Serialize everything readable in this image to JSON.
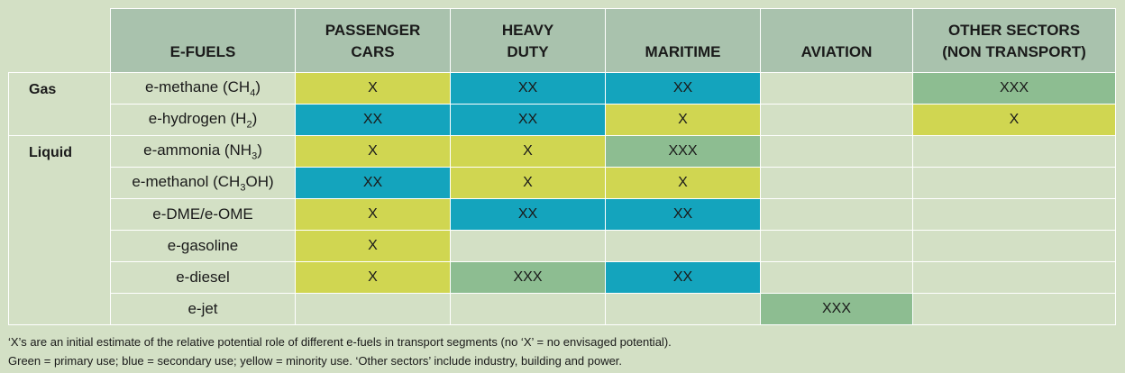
{
  "header": {
    "efuels": "E-FUELS",
    "col1_line1": "PASSENGER",
    "col1_line2": "CARS",
    "col2_line1": "HEAVY",
    "col2_line2": "DUTY",
    "col3": "MARITIME",
    "col4": "AVIATION",
    "col5_line1": "OTHER SECTORS",
    "col5_line2": "(NON TRANSPORT)"
  },
  "groups": {
    "gas": "Gas",
    "liquid": "Liquid"
  },
  "rows": [
    {
      "fuel_pre": "e-methane (CH",
      "fuel_sub": "4",
      "fuel_post": ")",
      "cells": [
        "X",
        "XX",
        "XX",
        "",
        "XXX"
      ]
    },
    {
      "fuel_pre": "e-hydrogen (H",
      "fuel_sub": "2",
      "fuel_post": ")",
      "cells": [
        "XX",
        "XX",
        "X",
        "",
        "X"
      ]
    },
    {
      "fuel_pre": "e-ammonia (NH",
      "fuel_sub": "3",
      "fuel_post": ")",
      "cells": [
        "X",
        "X",
        "XXX",
        "",
        ""
      ]
    },
    {
      "fuel_pre": "e-methanol (CH",
      "fuel_sub": "3",
      "fuel_post": "OH)",
      "cells": [
        "XX",
        "X",
        "X",
        "",
        ""
      ]
    },
    {
      "fuel_pre": "e-DME/e-OME",
      "fuel_sub": "",
      "fuel_post": "",
      "cells": [
        "X",
        "XX",
        "XX",
        "",
        ""
      ]
    },
    {
      "fuel_pre": "e-gasoline",
      "fuel_sub": "",
      "fuel_post": "",
      "cells": [
        "X",
        "",
        "",
        "",
        ""
      ]
    },
    {
      "fuel_pre": "e-diesel",
      "fuel_sub": "",
      "fuel_post": "",
      "cells": [
        "X",
        "XXX",
        "XX",
        "",
        ""
      ]
    },
    {
      "fuel_pre": "e-jet",
      "fuel_sub": "",
      "fuel_post": "",
      "cells": [
        "",
        "",
        "",
        "XXX",
        ""
      ]
    }
  ],
  "colors": {
    "yellow": "#d0d651",
    "blue": "#14a4bd",
    "green": "#8dbd91",
    "header": "#a9c2ad",
    "background": "#d3e0c5"
  },
  "footnotes": {
    "line1": "‘X’s are an initial estimate of the relative potential role of different e-fuels in transport segments (no ‘X’ = no envisaged potential).",
    "line2": "Green = primary use;  blue = secondary use;  yellow = minority use.  ‘Other sectors’ include industry, building and power."
  }
}
